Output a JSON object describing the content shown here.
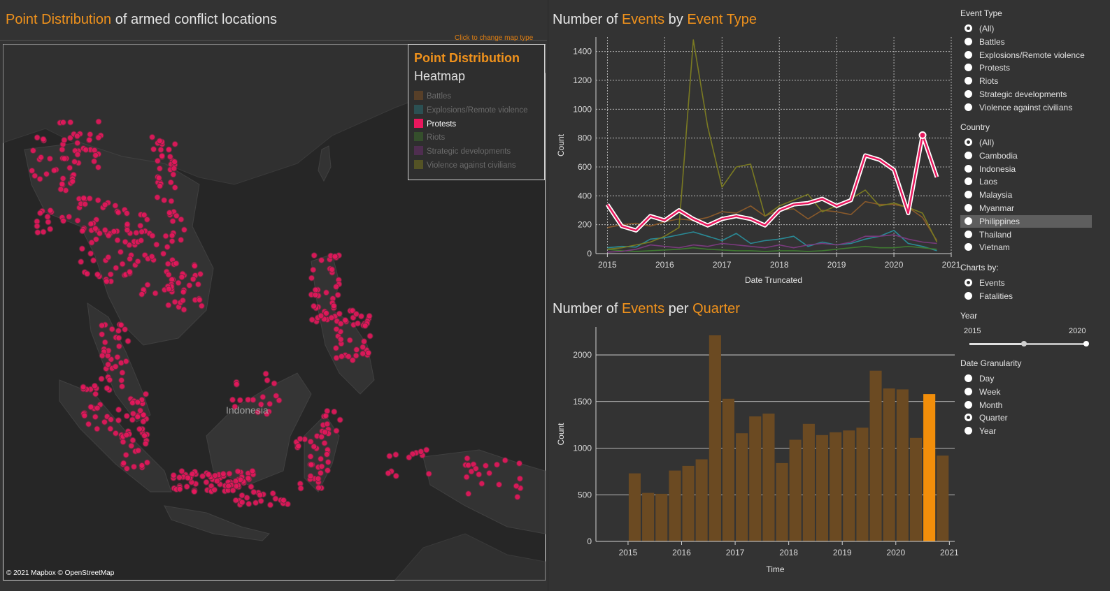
{
  "map": {
    "title_highlight": "Point Distribution",
    "title_rest": " of armed conflict locations",
    "click_hint": "Click to change map type",
    "country_label": "Indonesia",
    "copyright": "© 2021 Mapbox © OpenStreetMap",
    "legend": {
      "option_active": "Point Distribution",
      "option_other": "Heatmap",
      "items": [
        {
          "label": "Battles",
          "color": "#7a4f24",
          "active": false
        },
        {
          "label": "Explosions/Remote violence",
          "color": "#2a6e73",
          "active": false
        },
        {
          "label": "Protests",
          "color": "#e8175d",
          "active": true
        },
        {
          "label": "Riots",
          "color": "#3d6b2c",
          "active": false
        },
        {
          "label": "Strategic developments",
          "color": "#6b2f6e",
          "active": false
        },
        {
          "label": "Violence against civilians",
          "color": "#74731f",
          "active": false
        }
      ]
    }
  },
  "line_chart_header": {
    "p1": "Number of ",
    "p2": "Events",
    "p3": " by ",
    "p4": "Event Type"
  },
  "bar_chart_header": {
    "p1": "Number of ",
    "p2": "Events",
    "p3": " per ",
    "p4": "Quarter"
  },
  "chart_data": [
    {
      "type": "line",
      "xlabel": "Date Truncated",
      "ylabel": "Count",
      "xlim": [
        2014.8,
        2021.0
      ],
      "ylim": [
        0,
        1500
      ],
      "yticks": [
        0,
        200,
        400,
        600,
        800,
        1000,
        1200,
        1400
      ],
      "xticks": [
        2015,
        2016,
        2017,
        2018,
        2019,
        2020,
        2021
      ],
      "grid": true,
      "series": [
        {
          "name": "Battles",
          "color": "#8a5a2b",
          "x": [
            2015.0,
            2015.25,
            2015.5,
            2015.75,
            2016.0,
            2016.25,
            2016.5,
            2016.75,
            2017.0,
            2017.25,
            2017.5,
            2017.75,
            2018.0,
            2018.25,
            2018.5,
            2018.75,
            2019.0,
            2019.25,
            2019.5,
            2019.75,
            2020.0,
            2020.25,
            2020.5,
            2020.75
          ],
          "y": [
            180,
            200,
            210,
            190,
            220,
            240,
            230,
            250,
            290,
            280,
            330,
            260,
            300,
            310,
            240,
            300,
            290,
            270,
            360,
            340,
            340,
            320,
            250,
            90
          ]
        },
        {
          "name": "Explosions/Remote violence",
          "color": "#2a8a96",
          "x": [
            2015.0,
            2015.25,
            2015.5,
            2015.75,
            2016.0,
            2016.25,
            2016.5,
            2016.75,
            2017.0,
            2017.25,
            2017.5,
            2017.75,
            2018.0,
            2018.25,
            2018.5,
            2018.75,
            2019.0,
            2019.25,
            2019.5,
            2019.75,
            2020.0,
            2020.25,
            2020.5,
            2020.75
          ],
          "y": [
            40,
            50,
            45,
            100,
            110,
            130,
            150,
            120,
            90,
            140,
            70,
            90,
            100,
            120,
            50,
            80,
            60,
            70,
            100,
            120,
            160,
            70,
            50,
            20
          ]
        },
        {
          "name": "Riots",
          "color": "#3f7a31",
          "x": [
            2015.0,
            2015.25,
            2015.5,
            2015.75,
            2016.0,
            2016.25,
            2016.5,
            2016.75,
            2017.0,
            2017.25,
            2017.5,
            2017.75,
            2018.0,
            2018.25,
            2018.5,
            2018.75,
            2019.0,
            2019.25,
            2019.5,
            2019.75,
            2020.0,
            2020.25,
            2020.5,
            2020.75
          ],
          "y": [
            30,
            20,
            15,
            20,
            25,
            30,
            40,
            30,
            25,
            20,
            20,
            15,
            20,
            20,
            15,
            20,
            30,
            40,
            50,
            40,
            40,
            50,
            40,
            30
          ]
        },
        {
          "name": "Strategic developments",
          "color": "#7a3a7d",
          "x": [
            2015.0,
            2015.25,
            2015.5,
            2015.75,
            2016.0,
            2016.25,
            2016.5,
            2016.75,
            2017.0,
            2017.25,
            2017.5,
            2017.75,
            2018.0,
            2018.25,
            2018.5,
            2018.75,
            2019.0,
            2019.25,
            2019.5,
            2019.75,
            2020.0,
            2020.25,
            2020.5,
            2020.75
          ],
          "y": [
            10,
            15,
            30,
            60,
            50,
            40,
            60,
            50,
            70,
            60,
            50,
            40,
            60,
            40,
            60,
            70,
            60,
            80,
            120,
            120,
            130,
            100,
            80,
            70
          ]
        },
        {
          "name": "Violence against civilians",
          "color": "#7a7a22",
          "x": [
            2015.0,
            2015.25,
            2015.5,
            2015.75,
            2016.0,
            2016.25,
            2016.5,
            2016.75,
            2017.0,
            2017.25,
            2017.5,
            2017.75,
            2018.0,
            2018.25,
            2018.5,
            2018.75,
            2019.0,
            2019.25,
            2019.5,
            2019.75,
            2020.0,
            2020.25,
            2020.5,
            2020.75
          ],
          "y": [
            30,
            40,
            60,
            80,
            120,
            180,
            1480,
            880,
            460,
            600,
            620,
            260,
            330,
            370,
            410,
            290,
            330,
            380,
            440,
            330,
            350,
            320,
            280,
            80
          ]
        },
        {
          "name": "Protests",
          "color": "#e8175d",
          "highlight": true,
          "x": [
            2015.0,
            2015.25,
            2015.5,
            2015.75,
            2016.0,
            2016.25,
            2016.5,
            2016.75,
            2017.0,
            2017.25,
            2017.5,
            2017.75,
            2018.0,
            2018.25,
            2018.5,
            2018.75,
            2019.0,
            2019.25,
            2019.5,
            2019.75,
            2020.0,
            2020.25,
            2020.5,
            2020.75
          ],
          "y": [
            340,
            190,
            160,
            260,
            230,
            300,
            240,
            195,
            240,
            260,
            240,
            195,
            300,
            340,
            350,
            380,
            330,
            370,
            680,
            650,
            580,
            280,
            820,
            530
          ]
        }
      ]
    },
    {
      "type": "bar",
      "xlabel": "Time",
      "ylabel": "Count",
      "ylim": [
        0,
        2300
      ],
      "yticks": [
        0,
        500,
        1000,
        1500,
        2000
      ],
      "xticks": [
        2015,
        2016,
        2017,
        2018,
        2019,
        2020,
        2021
      ],
      "x": [
        2015.0,
        2015.25,
        2015.5,
        2015.75,
        2016.0,
        2016.25,
        2016.5,
        2016.75,
        2017.0,
        2017.25,
        2017.5,
        2017.75,
        2018.0,
        2018.25,
        2018.5,
        2018.75,
        2019.0,
        2019.25,
        2019.5,
        2019.75,
        2020.0,
        2020.25,
        2020.5,
        2020.75
      ],
      "values": [
        730,
        520,
        510,
        760,
        810,
        880,
        2210,
        1530,
        1160,
        1340,
        1370,
        840,
        1090,
        1260,
        1140,
        1170,
        1190,
        1220,
        1830,
        1640,
        1630,
        1110,
        1580,
        920
      ],
      "color": "#6b4a22",
      "highlight_index": 22,
      "highlight_color": "#f28e0a"
    }
  ],
  "filters": {
    "event_type": {
      "title": "Event Type",
      "options": [
        "(All)",
        "Battles",
        "Explosions/Remote violence",
        "Protests",
        "Riots",
        "Strategic developments",
        "Violence against civilians"
      ],
      "selected": 0
    },
    "country": {
      "title": "Country",
      "options": [
        "(All)",
        "Cambodia",
        "Indonesia",
        "Laos",
        "Malaysia",
        "Myanmar",
        "Philippines",
        "Thailand",
        "Vietnam"
      ],
      "selected": 0,
      "hovered": 6
    },
    "charts_by": {
      "title": "Charts by:",
      "options": [
        "Events",
        "Fatalities"
      ],
      "selected": 0
    },
    "year": {
      "title": "Year",
      "min_label": "2015",
      "max_label": "2020"
    },
    "date_granularity": {
      "title": "Date Granularity",
      "options": [
        "Day",
        "Week",
        "Month",
        "Quarter",
        "Year"
      ],
      "selected": 3
    }
  }
}
